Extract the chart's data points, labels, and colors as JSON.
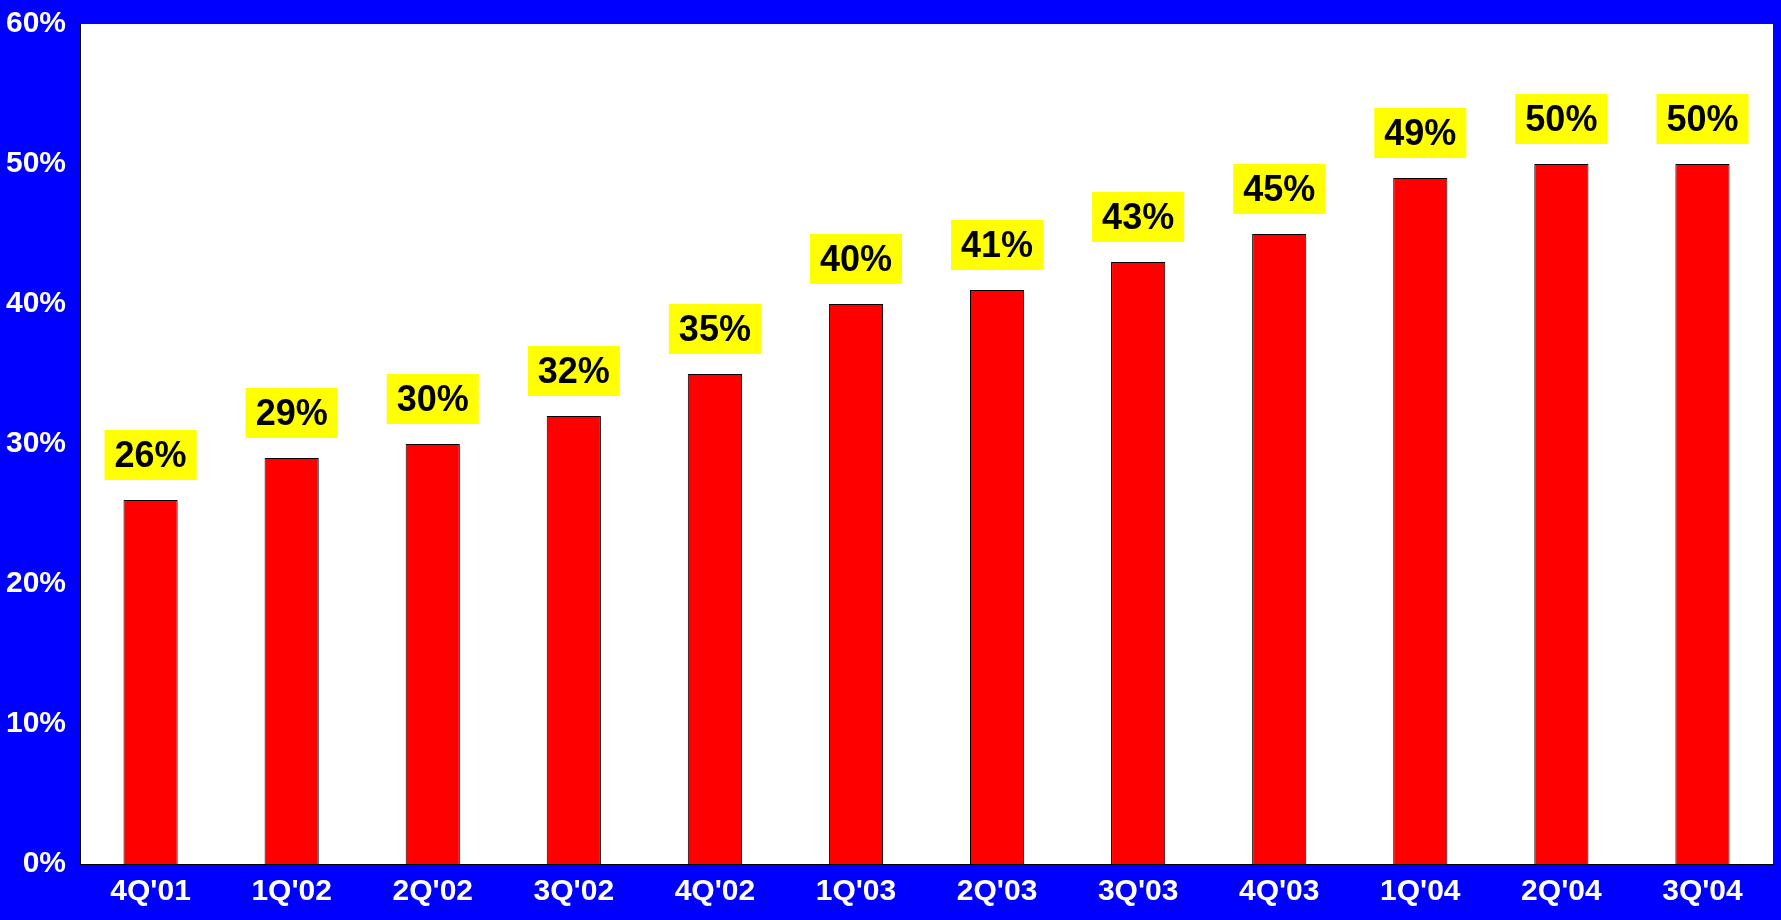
{
  "chart_data": {
    "type": "bar",
    "categories": [
      "4Q'01",
      "1Q'02",
      "2Q'02",
      "3Q'02",
      "4Q'02",
      "1Q'03",
      "2Q'03",
      "3Q'03",
      "4Q'03",
      "1Q'04",
      "2Q'04",
      "3Q'04"
    ],
    "values": [
      26,
      29,
      30,
      32,
      35,
      40,
      41,
      43,
      45,
      49,
      50,
      50
    ],
    "value_labels": [
      "26%",
      "29%",
      "30%",
      "32%",
      "35%",
      "40%",
      "41%",
      "43%",
      "45%",
      "49%",
      "50%",
      "50%"
    ],
    "color": "#ff0000",
    "ylim": [
      0,
      60
    ],
    "yticks": [
      {
        "value": 0,
        "label": "0%"
      },
      {
        "value": 10,
        "label": "10%"
      },
      {
        "value": 20,
        "label": "20%"
      },
      {
        "value": 30,
        "label": "30%"
      },
      {
        "value": 40,
        "label": "40%"
      },
      {
        "value": 50,
        "label": "50%"
      },
      {
        "value": 60,
        "label": "60%"
      }
    ],
    "grid": false,
    "legend": false
  }
}
